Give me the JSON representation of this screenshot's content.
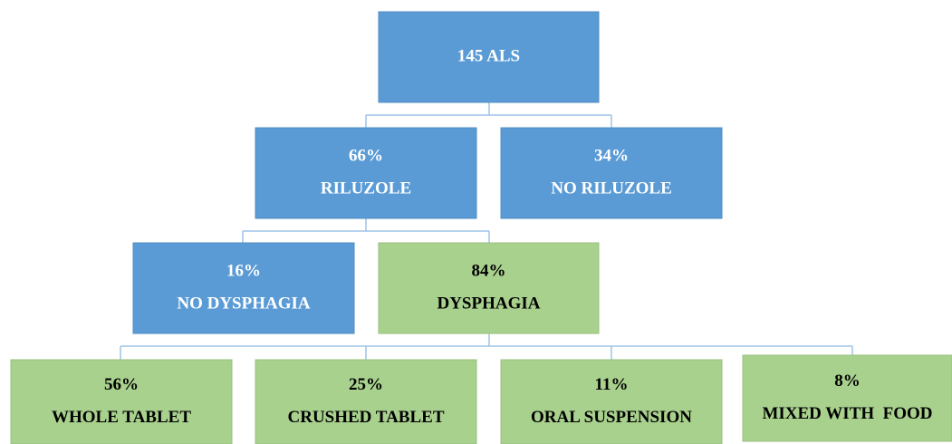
{
  "nodes": [
    {
      "lines": [
        "145 ALS"
      ]
    },
    {
      "lines": [
        "66%",
        "RILUZOLE"
      ]
    },
    {
      "lines": [
        "34%",
        "NO RILUZOLE"
      ]
    },
    {
      "lines": [
        "16%",
        "NO DYSPHAGIA"
      ]
    },
    {
      "lines": [
        "84%",
        "DYSPHAGIA"
      ]
    },
    {
      "lines": [
        "56%",
        "WHOLE TABLET"
      ]
    },
    {
      "lines": [
        "25%",
        "CRUSHED TABLET"
      ]
    },
    {
      "lines": [
        "11%",
        "ORAL SUSPENSION"
      ]
    },
    {
      "lines": [
        "8%",
        "MIXED WITH  FOOD"
      ]
    }
  ]
}
